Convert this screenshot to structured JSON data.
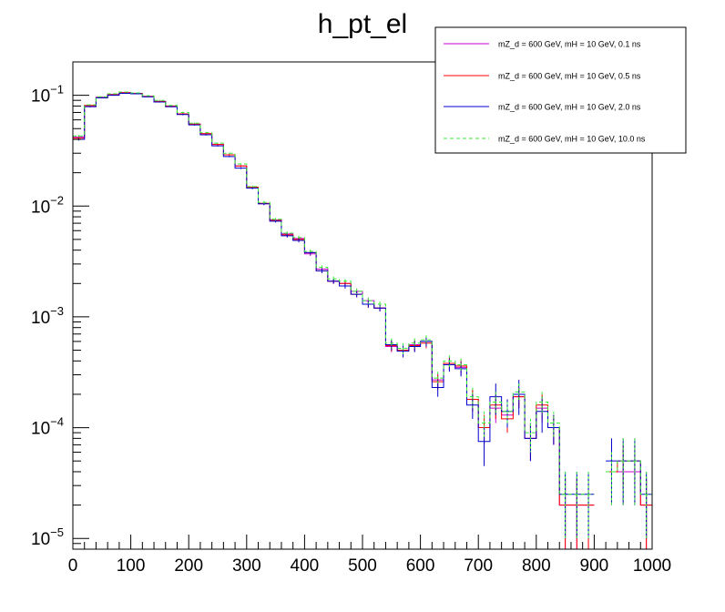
{
  "chart_data": {
    "type": "line",
    "title": "h_pt_el",
    "xlabel": "",
    "ylabel": "",
    "xlim": [
      0,
      1000
    ],
    "ylim": [
      8e-06,
      0.2
    ],
    "y_scale": "log",
    "grid": false,
    "legend_position": "top-right",
    "bin_width": 20,
    "x_ticks": [
      0,
      100,
      200,
      300,
      400,
      500,
      600,
      700,
      800,
      900,
      1000
    ],
    "x_tick_labels": [
      "0",
      "100",
      "200",
      "300",
      "400",
      "500",
      "600",
      "700",
      "800",
      "900",
      "1000"
    ],
    "y_ticks": [
      1e-05,
      0.0001,
      0.001,
      0.01,
      0.1
    ],
    "y_tick_labels": [
      {
        "base": "10",
        "exp": "−5"
      },
      {
        "base": "10",
        "exp": "−4"
      },
      {
        "base": "10",
        "exp": "−3"
      },
      {
        "base": "10",
        "exp": "−2"
      },
      {
        "base": "10",
        "exp": "−1"
      }
    ],
    "bin_edges": [
      0,
      20,
      40,
      60,
      80,
      100,
      120,
      140,
      160,
      180,
      200,
      220,
      240,
      260,
      280,
      300,
      320,
      340,
      360,
      380,
      400,
      420,
      440,
      460,
      480,
      500,
      520,
      540,
      560,
      580,
      600,
      620,
      640,
      660,
      680,
      700,
      720,
      740,
      760,
      780,
      800,
      820,
      840,
      860,
      880,
      900,
      920,
      940,
      960,
      980,
      1000
    ],
    "series": [
      {
        "name": "mZ_d = 600 GeV, mH = 10 GeV, 0.1 ns",
        "color": "#cc00cc",
        "style": "solid",
        "values": [
          0.042,
          0.08,
          0.096,
          0.102,
          0.106,
          0.104,
          0.097,
          0.088,
          0.079,
          0.068,
          0.055,
          0.045,
          0.036,
          0.029,
          0.023,
          0.0148,
          0.0105,
          0.0075,
          0.0056,
          0.0051,
          0.0037,
          0.0027,
          0.0021,
          0.002,
          0.0017,
          0.0014,
          0.0012,
          0.00054,
          0.0005,
          0.00056,
          0.0006,
          0.00027,
          0.00038,
          0.00035,
          0.00018,
          0.0001,
          0.00015,
          0.00013,
          0.00019,
          8e-05,
          0.00015,
          0.0001,
          2e-05,
          2e-05,
          2e-05,
          0,
          4e-05,
          4e-05,
          4e-05,
          2e-05
        ],
        "errors": [
          0.001,
          0.001,
          0.001,
          0.001,
          0.001,
          0.001,
          0.001,
          0.001,
          0.001,
          0.001,
          0.0008,
          0.0006,
          0.0005,
          0.0004,
          0.0004,
          0.0003,
          0.0003,
          0.0002,
          0.0002,
          0.0002,
          0.00015,
          0.00012,
          0.00011,
          0.0001,
          0.0001,
          9e-05,
          8e-05,
          6e-05,
          6e-05,
          6e-05,
          6e-05,
          4e-05,
          5e-05,
          5e-05,
          4e-05,
          3e-05,
          4e-05,
          3e-05,
          4e-05,
          3e-05,
          4e-05,
          3e-05,
          1.5e-05,
          1.5e-05,
          1.5e-05,
          0,
          2e-05,
          2e-05,
          2e-05,
          1.5e-05
        ]
      },
      {
        "name": "mZ_d = 600 GeV, mH = 10 GeV, 0.5 ns",
        "color": "#ff0000",
        "style": "solid",
        "values": [
          0.041,
          0.081,
          0.095,
          0.101,
          0.105,
          0.104,
          0.098,
          0.088,
          0.08,
          0.068,
          0.055,
          0.045,
          0.036,
          0.029,
          0.023,
          0.0148,
          0.0106,
          0.0074,
          0.0055,
          0.005,
          0.0038,
          0.0026,
          0.0021,
          0.002,
          0.0016,
          0.0013,
          0.0012,
          0.00055,
          0.0005,
          0.00055,
          0.00058,
          0.00026,
          0.00038,
          0.00036,
          0.00018,
          0.0001,
          0.00016,
          0.00012,
          0.00019,
          8e-05,
          0.00016,
          0.0001,
          2e-05,
          2e-05,
          2e-05,
          0,
          4e-05,
          5e-05,
          5e-05,
          2e-05
        ],
        "errors": [
          0.001,
          0.001,
          0.001,
          0.001,
          0.001,
          0.001,
          0.001,
          0.001,
          0.001,
          0.001,
          0.0008,
          0.0006,
          0.0005,
          0.0004,
          0.0004,
          0.0003,
          0.0003,
          0.0002,
          0.0002,
          0.0002,
          0.00015,
          0.00012,
          0.00011,
          0.0001,
          0.0001,
          9e-05,
          8e-05,
          6e-05,
          6e-05,
          6e-05,
          6e-05,
          4e-05,
          5e-05,
          5e-05,
          4e-05,
          3e-05,
          4e-05,
          3e-05,
          4e-05,
          3e-05,
          4e-05,
          3e-05,
          1.5e-05,
          1.5e-05,
          1.5e-05,
          0,
          2e-05,
          2e-05,
          2e-05,
          1.5e-05
        ]
      },
      {
        "name": "mZ_d = 600 GeV, mH = 10 GeV, 2.0 ns",
        "color": "#0000cc",
        "style": "solid",
        "values": [
          0.04,
          0.079,
          0.095,
          0.1,
          0.104,
          0.103,
          0.097,
          0.087,
          0.079,
          0.067,
          0.054,
          0.044,
          0.035,
          0.028,
          0.022,
          0.0145,
          0.0105,
          0.0073,
          0.0054,
          0.0049,
          0.0038,
          0.0026,
          0.0021,
          0.0019,
          0.0016,
          0.0013,
          0.0012,
          0.00056,
          0.00049,
          0.00054,
          0.0006,
          0.00023,
          0.00037,
          0.00034,
          0.00016,
          7.5e-05,
          0.00019,
          0.00014,
          0.0002,
          8e-05,
          0.00014,
          0.0001,
          2.5e-05,
          2.5e-05,
          2.5e-05,
          0,
          5e-05,
          5e-05,
          5e-05,
          2.5e-05
        ],
        "errors": [
          0.001,
          0.001,
          0.001,
          0.001,
          0.001,
          0.001,
          0.001,
          0.001,
          0.001,
          0.001,
          0.0008,
          0.0006,
          0.0005,
          0.0004,
          0.0004,
          0.0003,
          0.0003,
          0.0002,
          0.0002,
          0.0002,
          0.00015,
          0.00012,
          0.00011,
          0.0001,
          0.0001,
          9e-05,
          8e-05,
          6e-05,
          6e-05,
          6e-05,
          6e-05,
          4e-05,
          5e-05,
          5e-05,
          4e-05,
          3e-05,
          6e-05,
          4e-05,
          7e-05,
          3e-05,
          5e-05,
          3e-05,
          1.5e-05,
          1.5e-05,
          1.5e-05,
          0,
          3e-05,
          3e-05,
          3e-05,
          1.5e-05
        ]
      },
      {
        "name": "mZ_d = 600 GeV, mH = 10 GeV, 10.0 ns",
        "color": "#33ee33",
        "style": "dashed",
        "values": [
          0.043,
          0.082,
          0.097,
          0.103,
          0.107,
          0.105,
          0.099,
          0.09,
          0.081,
          0.07,
          0.056,
          0.046,
          0.037,
          0.03,
          0.024,
          0.015,
          0.0108,
          0.0076,
          0.0057,
          0.0052,
          0.0039,
          0.0028,
          0.0022,
          0.0021,
          0.0017,
          0.0014,
          0.0013,
          0.00058,
          0.00052,
          0.00058,
          0.00062,
          0.00028,
          0.0004,
          0.00037,
          0.00019,
          0.00011,
          0.00017,
          0.00014,
          0.00021,
          9e-05,
          0.00017,
          0.00011,
          2.5e-05,
          2.5e-05,
          2.5e-05,
          0,
          4e-05,
          5e-05,
          5e-05,
          2.5e-05
        ],
        "errors": [
          0.001,
          0.001,
          0.001,
          0.001,
          0.001,
          0.001,
          0.001,
          0.001,
          0.001,
          0.001,
          0.0008,
          0.0006,
          0.0005,
          0.0004,
          0.0004,
          0.0003,
          0.0003,
          0.0002,
          0.0002,
          0.0002,
          0.00015,
          0.00012,
          0.00011,
          0.0001,
          0.0001,
          9e-05,
          8e-05,
          6e-05,
          6e-05,
          6e-05,
          6e-05,
          4e-05,
          5e-05,
          5e-05,
          4e-05,
          3e-05,
          4e-05,
          3e-05,
          4e-05,
          3e-05,
          4e-05,
          3e-05,
          1.5e-05,
          1.5e-05,
          1.5e-05,
          0,
          2e-05,
          3e-05,
          3e-05,
          1.5e-05
        ]
      }
    ]
  }
}
